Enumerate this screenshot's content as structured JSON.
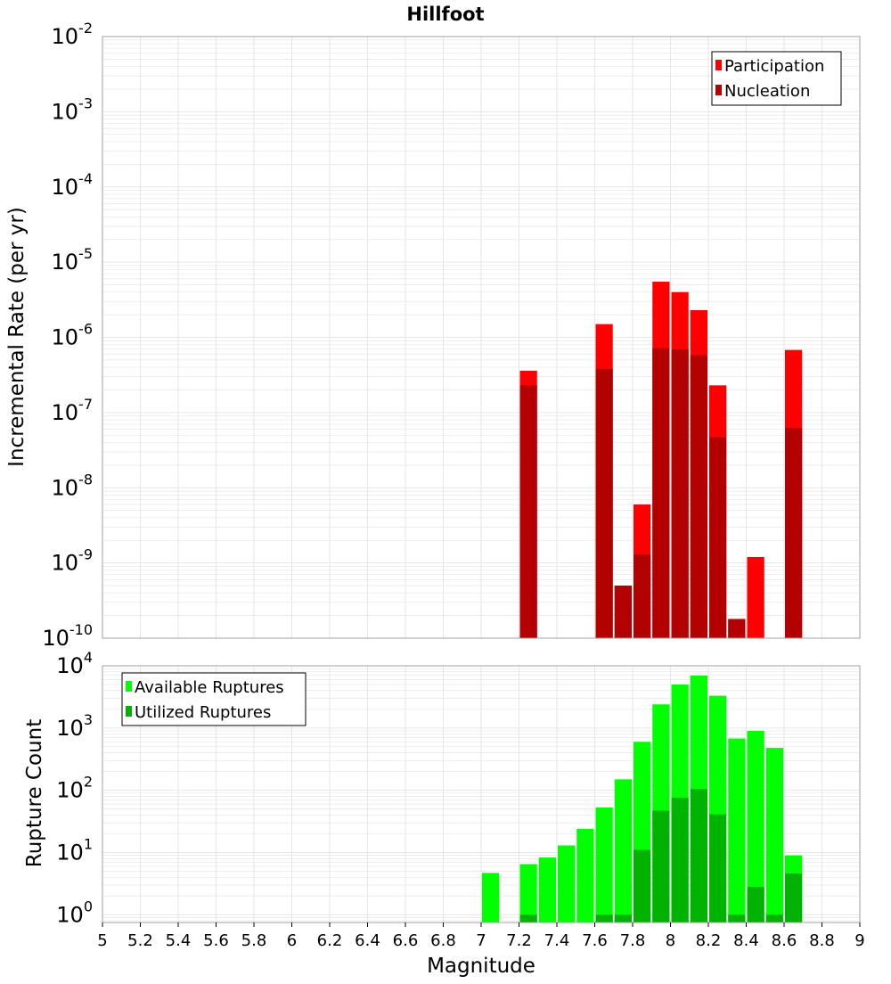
{
  "title": "Hillfoot",
  "x_axis": {
    "label": "Magnitude",
    "range": [
      5,
      9
    ],
    "ticks": [
      "5",
      "5.2",
      "5.4",
      "5.6",
      "5.8",
      "6",
      "6.2",
      "6.4",
      "6.6",
      "6.8",
      "7",
      "7.2",
      "7.4",
      "7.6",
      "7.8",
      "8",
      "8.2",
      "8.4",
      "8.6",
      "8.8",
      "9"
    ]
  },
  "colors": {
    "participation": "#ff0000",
    "nucleation": "#b30000",
    "available": "#00ff00",
    "utilized": "#00b300",
    "grid": "#e6e6e6",
    "frame": "#a0a0a0"
  },
  "chart_data": [
    {
      "type": "bar",
      "title": "Hillfoot",
      "ylabel": "Incremental Rate (per yr)",
      "xlabel": "",
      "y_scale": "log",
      "ylim": [
        1e-10,
        0.01
      ],
      "ytick_exponents": [
        "-10",
        "-9",
        "-8",
        "-7",
        "-6",
        "-5",
        "-4",
        "-3",
        "-2"
      ],
      "legend_position": "top-right",
      "series": [
        {
          "name": "Participation",
          "color": "#ff0000",
          "x": [
            7.25,
            7.65,
            7.75,
            7.85,
            7.95,
            8.05,
            8.15,
            8.25,
            8.35,
            8.45,
            8.65
          ],
          "values": [
            3.6e-07,
            1.5e-06,
            5e-10,
            6e-09,
            5.5e-06,
            4e-06,
            2.3e-06,
            2.3e-07,
            1.8e-10,
            1.2e-09,
            6.8e-07
          ]
        },
        {
          "name": "Nucleation",
          "color": "#b30000",
          "x": [
            7.25,
            7.65,
            7.75,
            7.85,
            7.95,
            8.05,
            8.15,
            8.25,
            8.35,
            8.45,
            8.65
          ],
          "values": [
            2.3e-07,
            3.8e-07,
            5e-10,
            1.3e-09,
            7.2e-07,
            6.9e-07,
            5.8e-07,
            4.7e-08,
            1.8e-10,
            1e-10,
            6.2e-08
          ]
        }
      ]
    },
    {
      "type": "bar",
      "ylabel": "Rupture Count",
      "xlabel": "Magnitude",
      "y_scale": "log",
      "ylim": [
        0.75,
        10000
      ],
      "ytick_exponents": [
        "0",
        "1",
        "2",
        "3",
        "4"
      ],
      "legend_position": "top-left",
      "series": [
        {
          "name": "Available Ruptures",
          "color": "#00ff00",
          "x": [
            7.05,
            7.25,
            7.35,
            7.45,
            7.55,
            7.65,
            7.75,
            7.85,
            7.95,
            8.05,
            8.15,
            8.25,
            8.35,
            8.45,
            8.55,
            8.65
          ],
          "values": [
            4.7,
            6.5,
            8.3,
            13,
            24,
            53,
            150,
            600,
            2400,
            5000,
            7000,
            3300,
            680,
            900,
            480,
            9
          ]
        },
        {
          "name": "Utilized Ruptures",
          "color": "#00b300",
          "x": [
            7.05,
            7.25,
            7.35,
            7.45,
            7.55,
            7.65,
            7.75,
            7.85,
            7.95,
            8.05,
            8.15,
            8.25,
            8.35,
            8.45,
            8.55,
            8.65
          ],
          "values": [
            0,
            1,
            0,
            0,
            0,
            1,
            1,
            11,
            47,
            76,
            105,
            41,
            1,
            2.8,
            1,
            4.6
          ]
        }
      ]
    }
  ]
}
